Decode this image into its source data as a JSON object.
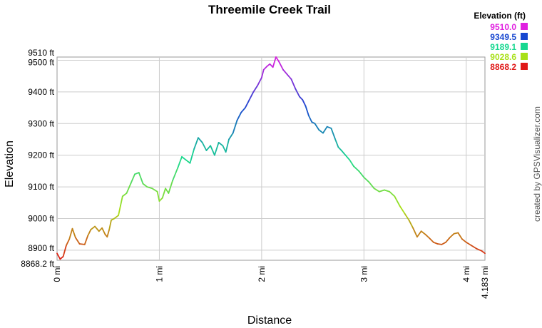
{
  "chart_data": {
    "type": "line",
    "title": "Threemile Creek Trail",
    "xlabel": "Distance",
    "ylabel": "Elevation",
    "xlim": [
      0,
      4.183
    ],
    "ylim": [
      8868.2,
      9510
    ],
    "grid": true,
    "x_ticks": [
      "0 mi",
      "1 mi",
      "2 mi",
      "3 mi",
      "4 mi",
      "4.183 mi"
    ],
    "x_tick_values": [
      0,
      1,
      2,
      3,
      4,
      4.183
    ],
    "y_ticks": [
      "8868.2 ft",
      "8900 ft",
      "9000 ft",
      "9100 ft",
      "9200 ft",
      "9300 ft",
      "9400 ft",
      "9500 ft",
      "9510 ft"
    ],
    "y_tick_values": [
      8868.2,
      8900,
      9000,
      9100,
      9200,
      9300,
      9400,
      9500,
      9510
    ],
    "legend": {
      "title": "Elevation (ft)",
      "placement": "top-right",
      "entries": [
        {
          "label": "9510.0",
          "color": "#e020e0"
        },
        {
          "label": "9349.5",
          "color": "#1848d0"
        },
        {
          "label": "9189.1",
          "color": "#18d890"
        },
        {
          "label": "9028.6",
          "color": "#a8e018"
        },
        {
          "label": "8868.2",
          "color": "#e01818"
        }
      ]
    },
    "series": [
      {
        "color_scale": "elevation",
        "points": [
          [
            0.0,
            8890
          ],
          [
            0.03,
            8872
          ],
          [
            0.06,
            8880
          ],
          [
            0.09,
            8915
          ],
          [
            0.12,
            8935
          ],
          [
            0.15,
            8968
          ],
          [
            0.18,
            8940
          ],
          [
            0.22,
            8920
          ],
          [
            0.27,
            8918
          ],
          [
            0.3,
            8945
          ],
          [
            0.33,
            8965
          ],
          [
            0.37,
            8975
          ],
          [
            0.41,
            8960
          ],
          [
            0.44,
            8970
          ],
          [
            0.47,
            8950
          ],
          [
            0.49,
            8942
          ],
          [
            0.51,
            8965
          ],
          [
            0.53,
            8995
          ],
          [
            0.56,
            9000
          ],
          [
            0.6,
            9010
          ],
          [
            0.62,
            9040
          ],
          [
            0.64,
            9070
          ],
          [
            0.68,
            9080
          ],
          [
            0.72,
            9110
          ],
          [
            0.76,
            9140
          ],
          [
            0.8,
            9145
          ],
          [
            0.84,
            9110
          ],
          [
            0.88,
            9100
          ],
          [
            0.93,
            9095
          ],
          [
            0.98,
            9085
          ],
          [
            1.0,
            9055
          ],
          [
            1.03,
            9065
          ],
          [
            1.06,
            9095
          ],
          [
            1.09,
            9080
          ],
          [
            1.13,
            9120
          ],
          [
            1.18,
            9160
          ],
          [
            1.22,
            9195
          ],
          [
            1.26,
            9185
          ],
          [
            1.3,
            9175
          ],
          [
            1.34,
            9220
          ],
          [
            1.38,
            9255
          ],
          [
            1.42,
            9240
          ],
          [
            1.46,
            9215
          ],
          [
            1.5,
            9230
          ],
          [
            1.54,
            9200
          ],
          [
            1.58,
            9240
          ],
          [
            1.62,
            9230
          ],
          [
            1.65,
            9210
          ],
          [
            1.68,
            9250
          ],
          [
            1.72,
            9270
          ],
          [
            1.76,
            9310
          ],
          [
            1.8,
            9335
          ],
          [
            1.84,
            9350
          ],
          [
            1.88,
            9375
          ],
          [
            1.92,
            9400
          ],
          [
            1.96,
            9420
          ],
          [
            2.0,
            9445
          ],
          [
            2.02,
            9470
          ],
          [
            2.05,
            9480
          ],
          [
            2.08,
            9488
          ],
          [
            2.11,
            9478
          ],
          [
            2.14,
            9510
          ],
          [
            2.17,
            9495
          ],
          [
            2.21,
            9470
          ],
          [
            2.25,
            9455
          ],
          [
            2.29,
            9440
          ],
          [
            2.33,
            9410
          ],
          [
            2.37,
            9385
          ],
          [
            2.4,
            9375
          ],
          [
            2.43,
            9355
          ],
          [
            2.46,
            9325
          ],
          [
            2.49,
            9305
          ],
          [
            2.52,
            9300
          ],
          [
            2.56,
            9280
          ],
          [
            2.6,
            9270
          ],
          [
            2.64,
            9290
          ],
          [
            2.68,
            9285
          ],
          [
            2.72,
            9250
          ],
          [
            2.75,
            9225
          ],
          [
            2.78,
            9215
          ],
          [
            2.82,
            9200
          ],
          [
            2.86,
            9185
          ],
          [
            2.9,
            9165
          ],
          [
            2.95,
            9150
          ],
          [
            3.0,
            9130
          ],
          [
            3.05,
            9115
          ],
          [
            3.1,
            9095
          ],
          [
            3.15,
            9085
          ],
          [
            3.2,
            9090
          ],
          [
            3.25,
            9085
          ],
          [
            3.3,
            9070
          ],
          [
            3.35,
            9040
          ],
          [
            3.4,
            9015
          ],
          [
            3.44,
            8995
          ],
          [
            3.48,
            8970
          ],
          [
            3.52,
            8942
          ],
          [
            3.56,
            8960
          ],
          [
            3.6,
            8950
          ],
          [
            3.64,
            8938
          ],
          [
            3.68,
            8925
          ],
          [
            3.72,
            8920
          ],
          [
            3.76,
            8918
          ],
          [
            3.8,
            8925
          ],
          [
            3.84,
            8940
          ],
          [
            3.88,
            8952
          ],
          [
            3.92,
            8955
          ],
          [
            3.96,
            8935
          ],
          [
            4.0,
            8925
          ],
          [
            4.05,
            8915
          ],
          [
            4.1,
            8905
          ],
          [
            4.15,
            8898
          ],
          [
            4.183,
            8890
          ]
        ]
      }
    ]
  },
  "credit_text": "created by GPSVisualizer.com"
}
